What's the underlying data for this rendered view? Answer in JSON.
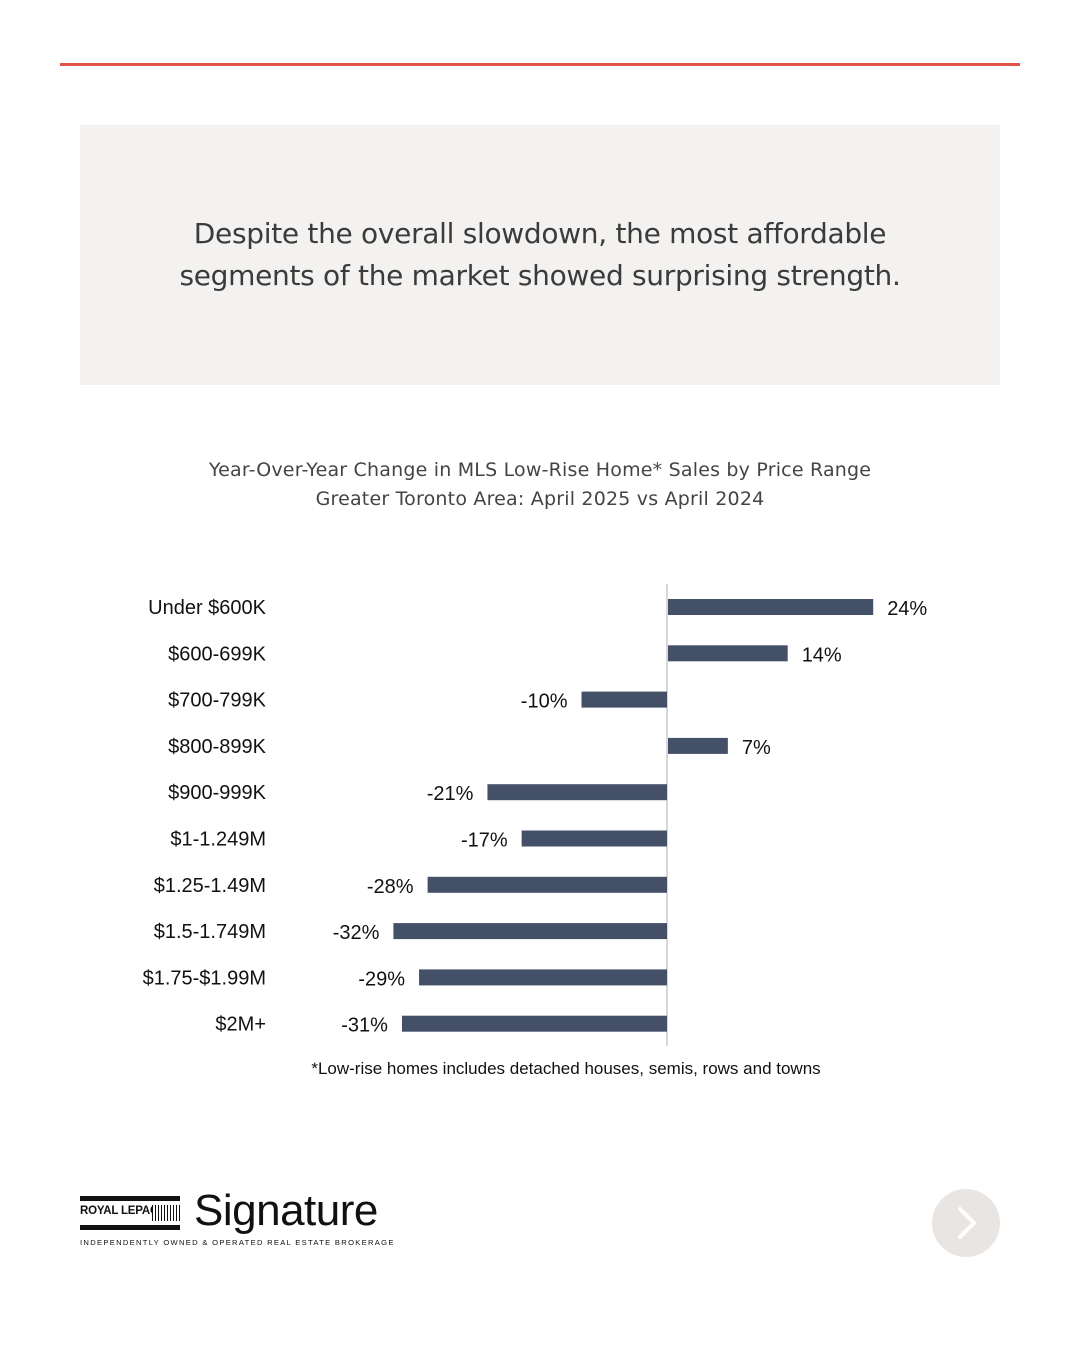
{
  "callout": {
    "text": "Despite the overall slowdown, the most affordable segments of the market showed surprising strength."
  },
  "chart_data": {
    "type": "bar",
    "orientation": "horizontal",
    "title": "Year-Over-Year Change in MLS Low-Rise Home* Sales by Price Range",
    "subtitle": "Greater Toronto Area: April 2025 vs April 2024",
    "categories": [
      "Under $600K",
      "$600-699K",
      "$700-799K",
      "$800-899K",
      "$900-999K",
      "$1-1.249M",
      "$1.25-1.49M",
      "$1.5-1.749M",
      "$1.75-$1.99M",
      "$2M+"
    ],
    "values": [
      24,
      14,
      -10,
      7,
      -21,
      -17,
      -28,
      -32,
      -29,
      -31
    ],
    "value_labels": [
      "24%",
      "14%",
      "-10%",
      "7%",
      "-21%",
      "-17%",
      "-28%",
      "-32%",
      "-29%",
      "-31%"
    ],
    "unit": "%",
    "xlim": [
      -35,
      30
    ],
    "grid": false,
    "bar_color": "#445068",
    "footnote": "*Low-rise homes includes detached houses, semis, rows and towns"
  },
  "brand": {
    "logo_word": "ROYAL LEPAGE",
    "logo_name": "Signature",
    "tagline": "INDEPENDENTLY OWNED & OPERATED REAL ESTATE BROKERAGE"
  },
  "colors": {
    "accent_rule": "#e4524c",
    "callout_bg": "#f3f2f0",
    "bar": "#445068",
    "next_button_bg": "#e8e5e2"
  },
  "nav": {
    "next_icon": "chevron-right-icon"
  }
}
